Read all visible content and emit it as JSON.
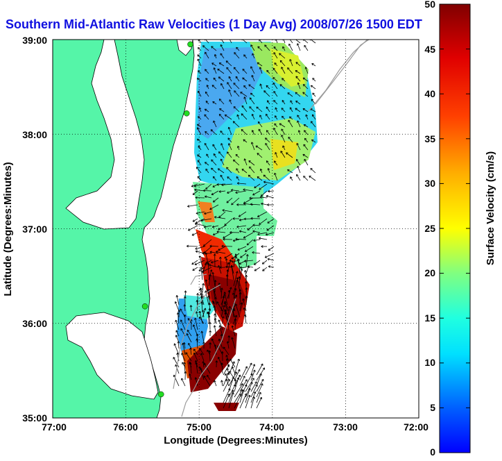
{
  "title": "Southern Mid-Atlantic Raw Velocities (1 Day Avg) 2008/07/26 1500 EDT",
  "colors": {
    "land": "#55f5a8",
    "title": "#1010e0",
    "station": "#22dd22",
    "contour": "#9a9a9a"
  },
  "axes": {
    "xlabel": "Longitude (Degrees:Minutes)",
    "ylabel": "Latitude (Degrees:Minutes)",
    "xticks": [
      "77:00",
      "76:00",
      "75:00",
      "74:00",
      "73:00",
      "72:00"
    ],
    "yticks": [
      "39:00",
      "38:00",
      "37:00",
      "36:00",
      "35:00"
    ]
  },
  "colorbar": {
    "label": "Surface Velocity (cm/s)",
    "ticks": [
      "50",
      "45",
      "40",
      "35",
      "30",
      "25",
      "20",
      "15",
      "10",
      "5",
      "0"
    ]
  },
  "chart_data": {
    "type": "heatmap",
    "title": "Southern Mid-Atlantic Raw Velocities (1 Day Avg) 2008/07/26 1500 EDT",
    "xlabel": "Longitude (Degrees:Minutes)",
    "ylabel": "Latitude (Degrees:Minutes)",
    "xlim": [
      -77,
      -72
    ],
    "ylim": [
      35,
      39
    ],
    "color_range": [
      0,
      50
    ],
    "color_label": "Surface Velocity (cm/s)",
    "grid": true,
    "regions": [
      {
        "lon": -74.8,
        "lat": 38.5,
        "speed": 7
      },
      {
        "lon": -74.3,
        "lat": 38.6,
        "speed": 22
      },
      {
        "lon": -74.0,
        "lat": 38.2,
        "speed": 17
      },
      {
        "lon": -74.2,
        "lat": 37.7,
        "speed": 24
      },
      {
        "lon": -74.8,
        "lat": 37.2,
        "speed": 16
      },
      {
        "lon": -75.0,
        "lat": 36.8,
        "speed": 42
      },
      {
        "lon": -74.7,
        "lat": 36.3,
        "speed": 47
      },
      {
        "lon": -75.1,
        "lat": 35.9,
        "speed": 12
      },
      {
        "lon": -74.8,
        "lat": 35.4,
        "speed": 48
      }
    ],
    "stations": [
      {
        "lon": -75.12,
        "lat": 38.95
      },
      {
        "lon": -75.17,
        "lat": 38.22
      },
      {
        "lon": -75.74,
        "lat": 36.18
      },
      {
        "lon": -75.52,
        "lat": 35.25
      }
    ]
  }
}
